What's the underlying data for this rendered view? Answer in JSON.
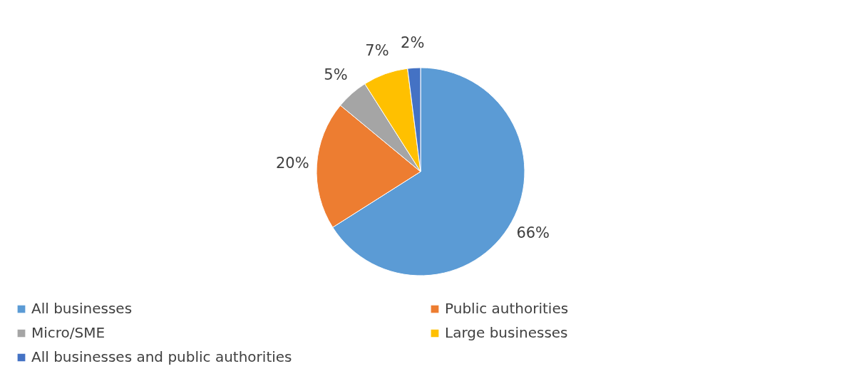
{
  "chart_data": {
    "type": "pie",
    "categories": [
      "All businesses",
      "Public authorities",
      "Micro/SME",
      "Large businesses",
      "All businesses and public authorities"
    ],
    "values": [
      66,
      20,
      5,
      7,
      2
    ],
    "colors": [
      "#5b9bd5",
      "#ed7d31",
      "#a5a5a5",
      "#ffc000",
      "#4472c4"
    ],
    "value_labels": [
      "66%",
      "20%",
      "5%",
      "7%",
      "2%"
    ],
    "legend": "bottom"
  }
}
